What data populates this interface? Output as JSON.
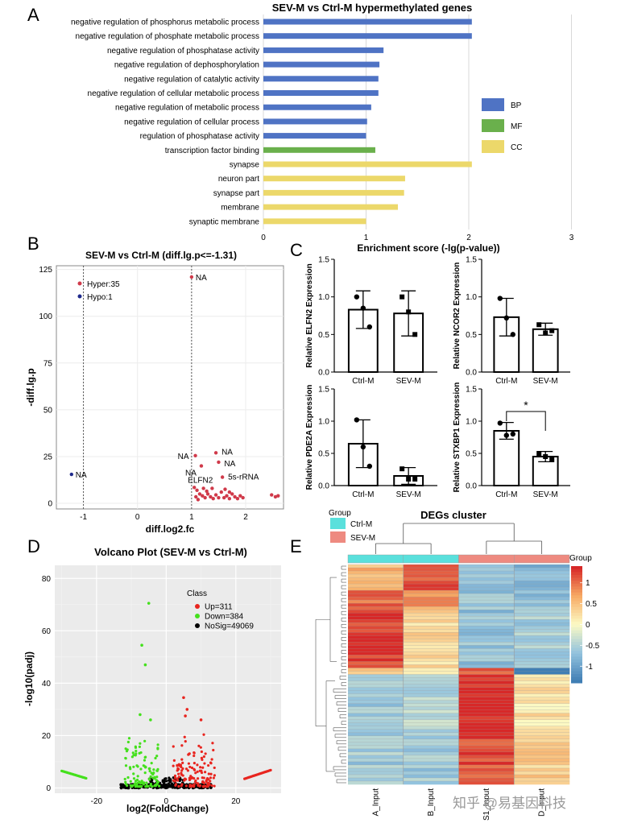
{
  "panelA": {
    "letter": "A",
    "title": "SEV-M vs Ctrl-M hypermethylated genes",
    "xlabel": "Enrichment score (-lg(p-value))",
    "colors": {
      "BP": "#4f73c4",
      "MF": "#6ab04c",
      "CC": "#ecd86a"
    },
    "legend": [
      "BP",
      "MF",
      "CC"
    ]
  },
  "panelB": {
    "letter": "B",
    "title": "SEV-M vs Ctrl-M (diff.lg.p<=-1.31)",
    "xlabel": "diff.log2.fc",
    "ylabel": "-diff.lg.p",
    "legend_hyper": "Hyper:35",
    "legend_hypo": "Hypo:1",
    "colors": {
      "hyper": "#d03a4a",
      "hypo": "#1f2a8c"
    }
  },
  "panelC": {
    "letter": "C",
    "categories": [
      "Ctrl-M",
      "SEV-M"
    ],
    "significance": "*"
  },
  "panelD": {
    "letter": "D",
    "title": "Volcano Plot (SEV-M vs Ctrl-M)",
    "xlabel": "log2(FoldChange)",
    "ylabel": "-log10(padj)",
    "legend_title": "Class",
    "legend": [
      {
        "label": "Up=311",
        "color": "#e8251f"
      },
      {
        "label": "Down=384",
        "color": "#44e01c"
      },
      {
        "label": "NoSig=49069",
        "color": "#000000"
      }
    ]
  },
  "panelE": {
    "letter": "E",
    "title": "DEGs cluster",
    "group_title": "Group",
    "groups": [
      {
        "label": "Ctrl-M",
        "color": "#5ae0dc"
      },
      {
        "label": "SEV-M",
        "color": "#ee8a80"
      }
    ],
    "columns": [
      "A_Input",
      "B_Input",
      "S1_Input",
      "D_Input"
    ],
    "colorbar_title": "Group",
    "colorbar_ticks": [
      "1",
      "0.5",
      "0",
      "-0.5",
      "-1"
    ]
  },
  "watermark": "知乎 @易基因科技",
  "chart_data": [
    {
      "type": "bar",
      "panel": "A",
      "title": "SEV-M vs Ctrl-M hypermethylated genes",
      "xlabel": "Enrichment score (-lg(p-value))",
      "xlim": [
        0,
        3
      ],
      "xticks": [
        0,
        1,
        2,
        3
      ],
      "categories": [
        "negative regulation of phosphorus metabolic process",
        "negative regulation of phosphate metabolic process",
        "negative regulation of phosphatase activity",
        "negative regulation of dephosphorylation",
        "negative regulation of catalytic activity",
        "negative regulation of cellular metabolic process",
        "negative regulation of metabolic process",
        "negative regulation of cellular process",
        "regulation of phosphatase activity",
        "transcription factor binding",
        "synapse",
        "neuron part",
        "synapse part",
        "membrane",
        "synaptic membrane"
      ],
      "values": [
        2.03,
        2.03,
        1.17,
        1.13,
        1.12,
        1.12,
        1.05,
        1.01,
        1.0,
        1.09,
        2.03,
        1.38,
        1.37,
        1.31,
        1.0
      ],
      "groups": [
        "BP",
        "BP",
        "BP",
        "BP",
        "BP",
        "BP",
        "BP",
        "BP",
        "BP",
        "MF",
        "CC",
        "CC",
        "CC",
        "CC",
        "CC"
      ]
    },
    {
      "type": "scatter",
      "panel": "B",
      "title": "SEV-M vs Ctrl-M (diff.lg.p<=-1.31)",
      "xlabel": "diff.log2.fc",
      "ylabel": "-diff.lg.p",
      "xlim": [
        -1.5,
        2.7
      ],
      "ylim": [
        -3,
        127
      ],
      "xticks": [
        -1,
        0,
        1,
        2
      ],
      "yticks": [
        0,
        25,
        50,
        75,
        100,
        125
      ],
      "vlines": [
        -1,
        1
      ],
      "points": [
        {
          "x": 1.0,
          "y": 121,
          "class": "hyper",
          "label": "NA"
        },
        {
          "x": -1.22,
          "y": 15.5,
          "class": "hypo",
          "label": "NA"
        },
        {
          "x": 1.07,
          "y": 25.5,
          "class": "hyper",
          "label": "NA"
        },
        {
          "x": 1.45,
          "y": 27,
          "class": "hyper",
          "label": "NA"
        },
        {
          "x": 1.5,
          "y": 22,
          "class": "hyper",
          "label": "NA"
        },
        {
          "x": 1.18,
          "y": 20,
          "class": "hyper",
          "label": "NA"
        },
        {
          "x": 1.57,
          "y": 14,
          "class": "hyper",
          "label": "5s-rRNA"
        },
        {
          "x": 1.05,
          "y": 8.5,
          "class": "hyper",
          "label": "ELFN2"
        },
        {
          "x": 1.1,
          "y": 7,
          "class": "hyper"
        },
        {
          "x": 1.15,
          "y": 5,
          "class": "hyper"
        },
        {
          "x": 1.2,
          "y": 4,
          "class": "hyper"
        },
        {
          "x": 1.25,
          "y": 3,
          "class": "hyper"
        },
        {
          "x": 1.3,
          "y": 5,
          "class": "hyper"
        },
        {
          "x": 1.35,
          "y": 3.5,
          "class": "hyper"
        },
        {
          "x": 1.4,
          "y": 2.5,
          "class": "hyper"
        },
        {
          "x": 1.45,
          "y": 4.5,
          "class": "hyper"
        },
        {
          "x": 1.5,
          "y": 3,
          "class": "hyper"
        },
        {
          "x": 1.55,
          "y": 6,
          "class": "hyper"
        },
        {
          "x": 1.6,
          "y": 3,
          "class": "hyper"
        },
        {
          "x": 1.65,
          "y": 4,
          "class": "hyper"
        },
        {
          "x": 1.7,
          "y": 2.5,
          "class": "hyper"
        },
        {
          "x": 1.75,
          "y": 5,
          "class": "hyper"
        },
        {
          "x": 1.8,
          "y": 3.5,
          "class": "hyper"
        },
        {
          "x": 1.85,
          "y": 2.5,
          "class": "hyper"
        },
        {
          "x": 1.9,
          "y": 4,
          "class": "hyper"
        },
        {
          "x": 1.95,
          "y": 3,
          "class": "hyper"
        },
        {
          "x": 1.12,
          "y": 2,
          "class": "hyper"
        },
        {
          "x": 1.28,
          "y": 6.5,
          "class": "hyper"
        },
        {
          "x": 1.62,
          "y": 7.5,
          "class": "hyper"
        },
        {
          "x": 2.48,
          "y": 4.5,
          "class": "hyper"
        },
        {
          "x": 2.55,
          "y": 3.5,
          "class": "hyper"
        },
        {
          "x": 2.6,
          "y": 4,
          "class": "hyper"
        },
        {
          "x": 1.08,
          "y": 3.5,
          "class": "hyper"
        },
        {
          "x": 1.22,
          "y": 8,
          "class": "hyper"
        },
        {
          "x": 1.38,
          "y": 8,
          "class": "hyper"
        },
        {
          "x": 1.7,
          "y": 6,
          "class": "hyper"
        }
      ]
    },
    {
      "type": "bar",
      "panel": "C1",
      "ylabel": "Relative ELFN2 Expression",
      "categories": [
        "Ctrl-M",
        "SEV-M"
      ],
      "values": [
        0.83,
        0.78
      ],
      "errors": [
        0.25,
        0.3
      ],
      "points": [
        [
          1.0,
          0.6,
          0.85
        ],
        [
          1.0,
          0.5,
          0.8
        ]
      ],
      "ylim": [
        0,
        1.5
      ],
      "yticks": [
        0.0,
        0.5,
        1.0,
        1.5
      ]
    },
    {
      "type": "bar",
      "panel": "C2",
      "ylabel": "Relative NCOR2 Expression",
      "categories": [
        "Ctrl-M",
        "SEV-M"
      ],
      "values": [
        0.73,
        0.57
      ],
      "errors": [
        0.25,
        0.08
      ],
      "points": [
        [
          0.98,
          0.5,
          0.72
        ],
        [
          0.63,
          0.55,
          0.52
        ]
      ],
      "ylim": [
        0,
        1.5
      ],
      "yticks": [
        0.0,
        0.5,
        1.0,
        1.5
      ]
    },
    {
      "type": "bar",
      "panel": "C3",
      "ylabel": "Relative PDE2A Expression",
      "categories": [
        "Ctrl-M",
        "SEV-M"
      ],
      "values": [
        0.65,
        0.15
      ],
      "errors": [
        0.37,
        0.13
      ],
      "points": [
        [
          1.02,
          0.3,
          0.6
        ],
        [
          0.26,
          0.1,
          0.1
        ]
      ],
      "ylim": [
        0,
        1.5
      ],
      "yticks": [
        0.0,
        0.5,
        1.0,
        1.5
      ]
    },
    {
      "type": "bar",
      "panel": "C4",
      "ylabel": "Relative STXBP1 Expression",
      "categories": [
        "Ctrl-M",
        "SEV-M"
      ],
      "values": [
        0.85,
        0.45
      ],
      "errors": [
        0.13,
        0.08
      ],
      "points": [
        [
          0.97,
          0.8,
          0.78
        ],
        [
          0.5,
          0.4,
          0.45
        ]
      ],
      "ylim": [
        0,
        1.5
      ],
      "yticks": [
        0.0,
        0.5,
        1.0,
        1.5
      ],
      "significance": "*"
    },
    {
      "type": "scatter",
      "panel": "D",
      "title": "Volcano Plot (SEV-M vs Ctrl-M)",
      "xlabel": "log2(FoldChange)",
      "ylabel": "-log10(padj)",
      "xlim": [
        -32,
        33
      ],
      "ylim": [
        -2,
        85
      ],
      "xticks": [
        -20,
        0,
        20
      ],
      "yticks": [
        0,
        20,
        40,
        60,
        80
      ],
      "series": [
        {
          "name": "Up=311",
          "count": 311
        },
        {
          "name": "Down=384",
          "count": 384
        },
        {
          "name": "NoSig=49069",
          "count": 49069
        }
      ],
      "highlight_points": [
        {
          "x": -5,
          "y": 70.5,
          "class": "Down"
        },
        {
          "x": -7,
          "y": 54.5,
          "class": "Down"
        },
        {
          "x": -6,
          "y": 47,
          "class": "Down"
        },
        {
          "x": 5,
          "y": 34.5,
          "class": "Up"
        },
        {
          "x": 6,
          "y": 30,
          "class": "Up"
        },
        {
          "x": 5.5,
          "y": 27.5,
          "class": "Up"
        },
        {
          "x": -7.5,
          "y": 28,
          "class": "Down"
        },
        {
          "x": -4.5,
          "y": 26,
          "class": "Down"
        },
        {
          "x": 10,
          "y": 26,
          "class": "Up"
        }
      ]
    },
    {
      "type": "heatmap",
      "panel": "E",
      "title": "DEGs cluster",
      "columns": [
        "A_Input",
        "B_Input",
        "S1_Input",
        "D_Input"
      ],
      "column_groups": [
        "Ctrl-M",
        "Ctrl-M",
        "SEV-M",
        "SEV-M"
      ],
      "value_range": [
        -1.4,
        1.4
      ],
      "colorbar_ticks": [
        1,
        0.5,
        0,
        -0.5,
        -1
      ],
      "row_blocks": [
        {
          "rows": 8,
          "values": [
            0.6,
            1.2,
            -0.6,
            -0.8
          ]
        },
        {
          "rows": 6,
          "values": [
            1.0,
            0.8,
            -0.7,
            -0.7
          ]
        },
        {
          "rows": 18,
          "values": [
            1.3,
            0.3,
            -0.7,
            -0.6
          ]
        },
        {
          "rows": 2,
          "values": [
            0.3,
            0.1,
            1.1,
            -1.3
          ]
        },
        {
          "rows": 20,
          "values": [
            -0.6,
            -0.5,
            1.4,
            0.2
          ]
        },
        {
          "rows": 14,
          "values": [
            -0.6,
            -0.6,
            1.2,
            0.4
          ]
        }
      ]
    }
  ]
}
